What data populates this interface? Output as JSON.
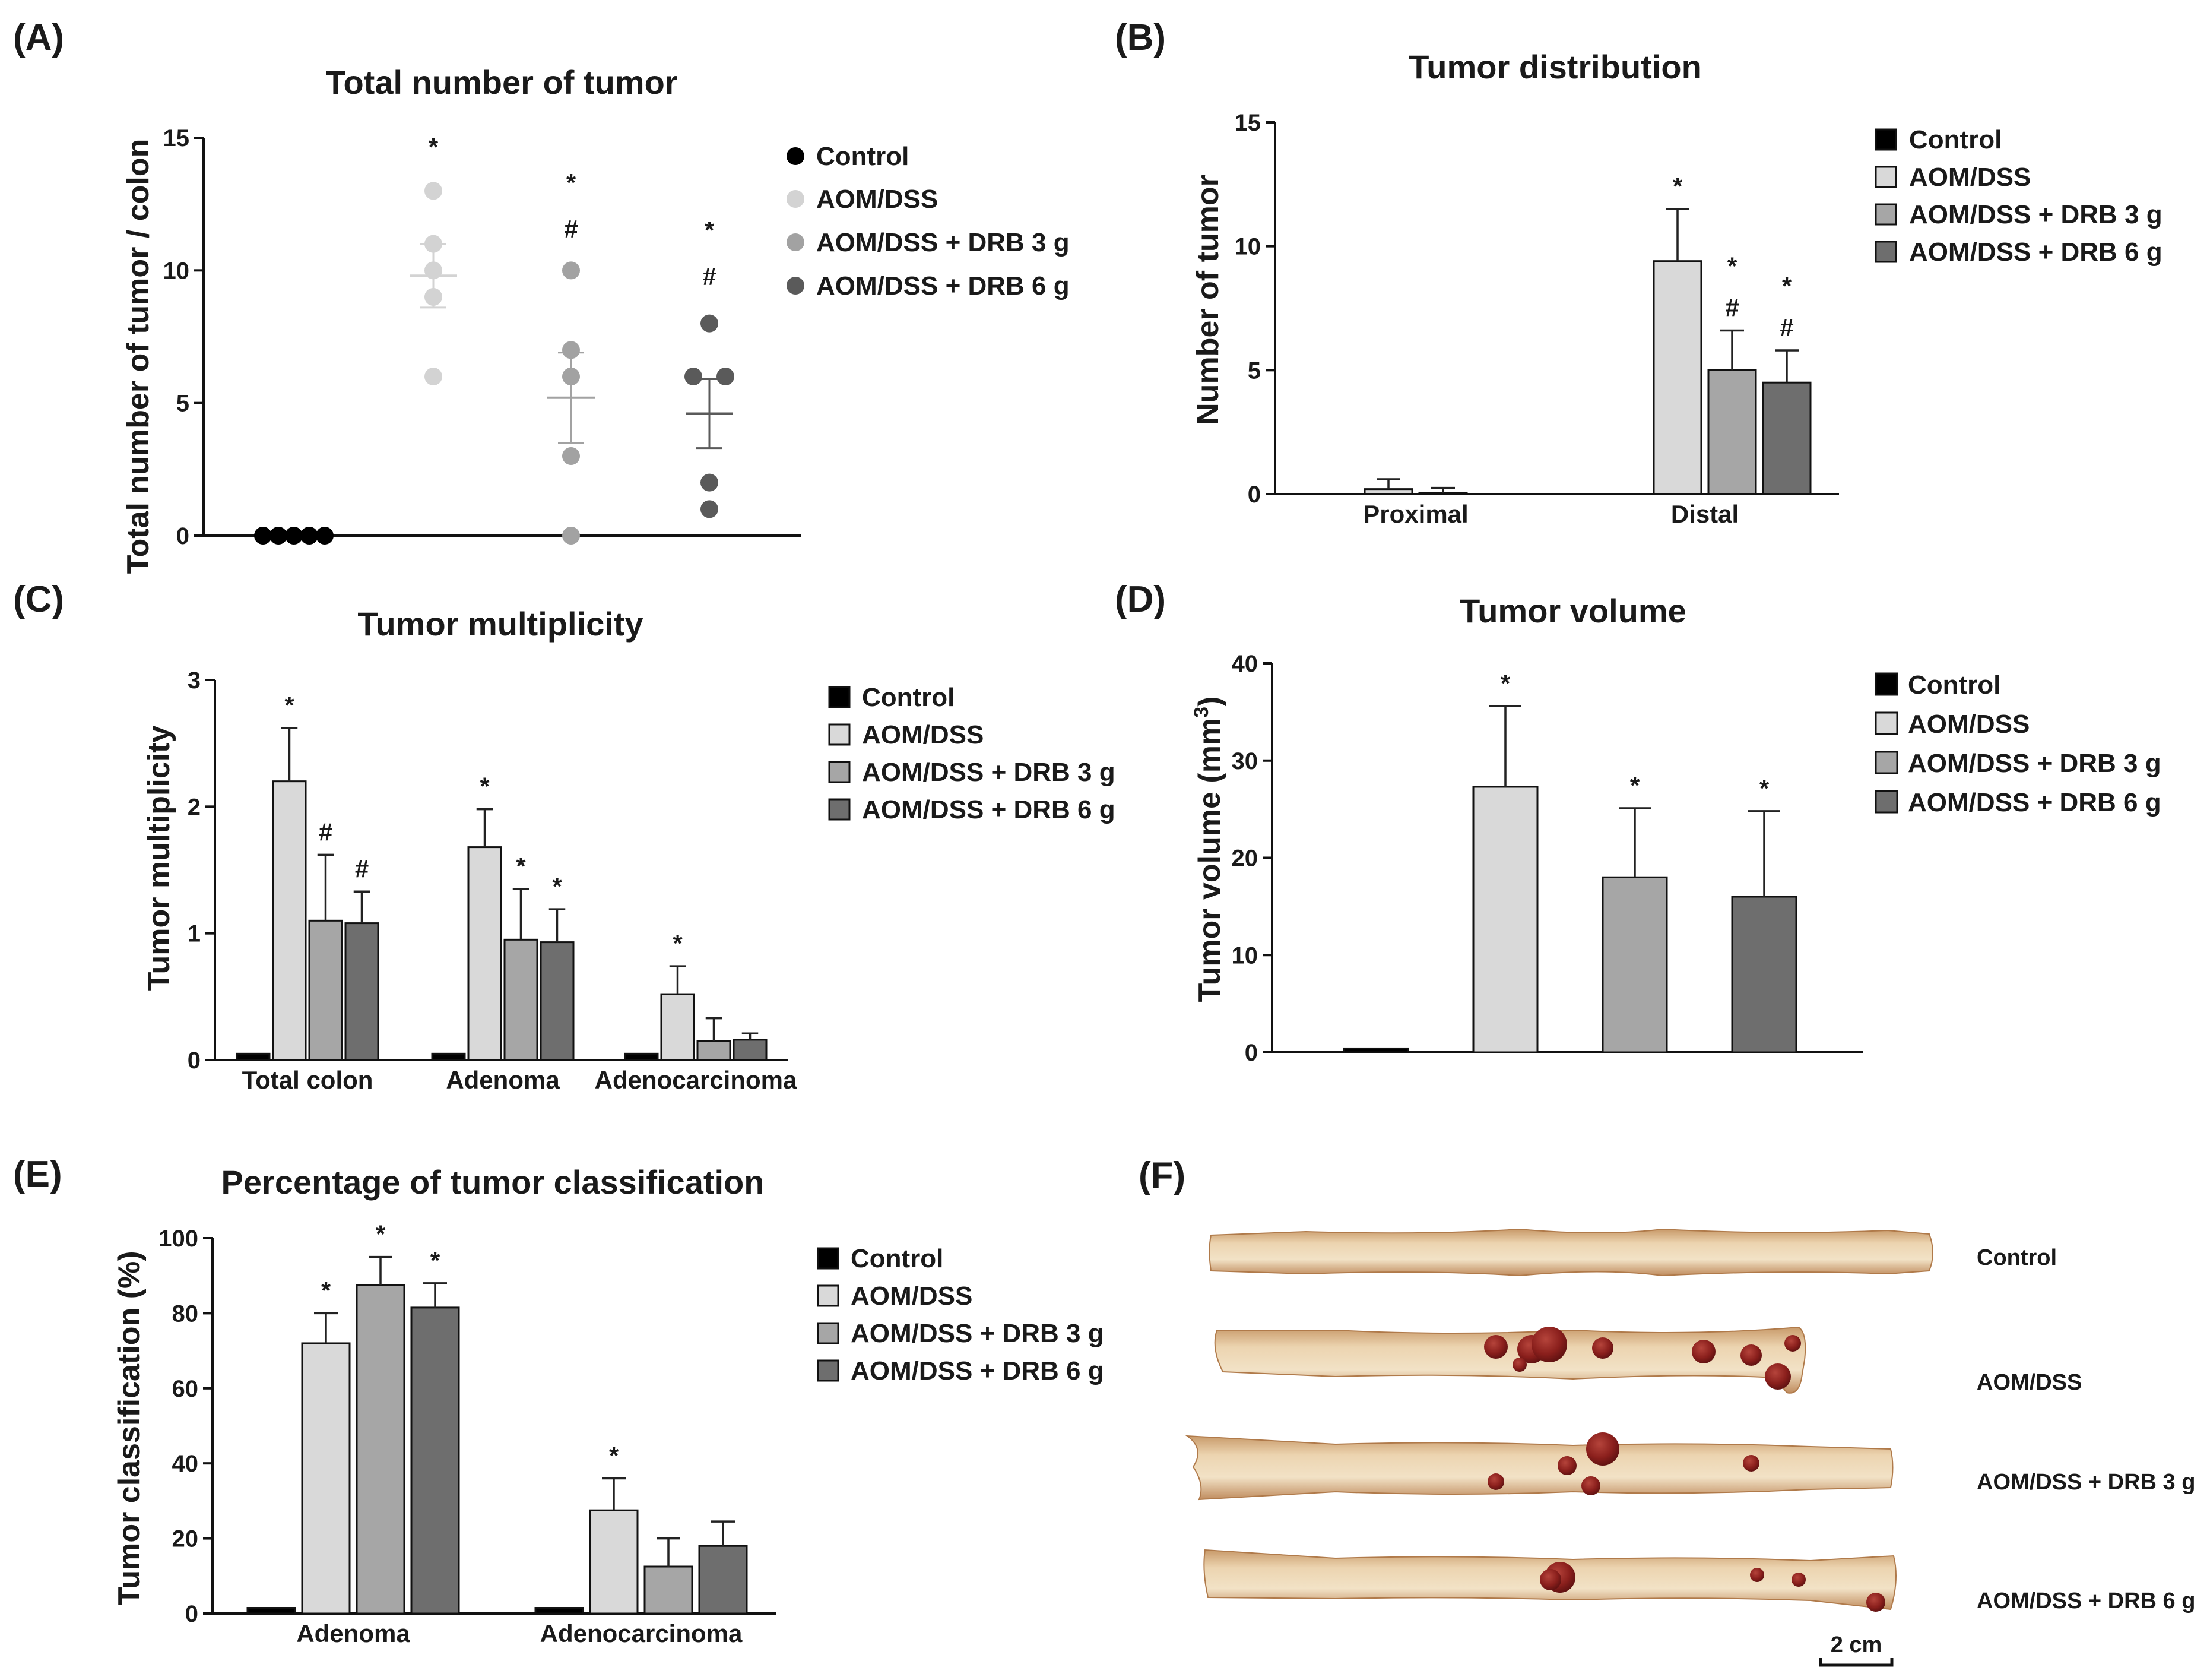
{
  "colors": {
    "control": "#000000",
    "aom": "#d9d9d9",
    "drb3": "#a6a6a6",
    "drb6": "#6e6e6e",
    "dot_aom": "#d3d3d3",
    "dot_drb3": "#a2a2a2",
    "dot_drb6": "#5a5a5a"
  },
  "legend": [
    "Control",
    "AOM/DSS",
    "AOM/DSS + DRB 3 g",
    "AOM/DSS + DRB 6 g"
  ],
  "panel_f": {
    "label": "(F)",
    "sample_labels": [
      "Control",
      "AOM/DSS",
      "AOM/DSS + DRB 3 g",
      "AOM/DSS + DRB 6 g"
    ],
    "scale_bar": "2 cm"
  },
  "chart_data": [
    {
      "id": "A",
      "label": "(A)",
      "type": "scatter",
      "title": "Total number of tumor",
      "xlabel": "",
      "ylabel": "Total number of tumor / colon",
      "ylim": [
        0,
        15
      ],
      "yticks": [
        "0",
        "5",
        "10",
        "15"
      ],
      "series": [
        {
          "name": "Control",
          "points": [
            0,
            0,
            0,
            0,
            0
          ],
          "mean": 0,
          "sem": 0,
          "annotations": []
        },
        {
          "name": "AOM/DSS",
          "points": [
            13,
            11,
            10,
            9,
            6
          ],
          "mean": 9.8,
          "sem": 1.2,
          "annotations": [
            "*"
          ]
        },
        {
          "name": "AOM/DSS + DRB 3 g",
          "points": [
            10,
            7,
            6,
            3,
            0
          ],
          "mean": 5.2,
          "sem": 1.7,
          "annotations": [
            "*",
            "#"
          ]
        },
        {
          "name": "AOM/DSS + DRB 6 g",
          "points": [
            8,
            6,
            6,
            2,
            1
          ],
          "mean": 4.6,
          "sem": 1.3,
          "annotations": [
            "*",
            "#"
          ]
        }
      ]
    },
    {
      "id": "B",
      "label": "(B)",
      "type": "bar",
      "title": "Tumor distribution",
      "xlabel": "",
      "ylabel": "Number of tumor",
      "ylim": [
        0,
        15
      ],
      "yticks": [
        "0",
        "5",
        "10",
        "15"
      ],
      "categories": [
        "Proximal",
        "Distal"
      ],
      "series": [
        {
          "name": "Control",
          "values": [
            0,
            0
          ],
          "errors": [
            0,
            0
          ],
          "annotations": [
            [],
            []
          ]
        },
        {
          "name": "AOM/DSS",
          "values": [
            0.2,
            9.4
          ],
          "errors": [
            0.4,
            2.1
          ],
          "annotations": [
            [],
            [
              "*"
            ]
          ]
        },
        {
          "name": "AOM/DSS + DRB 3 g",
          "values": [
            0.05,
            5.0
          ],
          "errors": [
            0.2,
            1.6
          ],
          "annotations": [
            [],
            [
              "*",
              "#"
            ]
          ]
        },
        {
          "name": "AOM/DSS + DRB 6 g",
          "values": [
            0,
            4.5
          ],
          "errors": [
            0,
            1.3
          ],
          "annotations": [
            [],
            [
              "*",
              "#"
            ]
          ]
        }
      ]
    },
    {
      "id": "C",
      "label": "(C)",
      "type": "bar",
      "title": "Tumor multiplicity",
      "xlabel": "",
      "ylabel": "Tumor multiplicity",
      "ylim": [
        0,
        3
      ],
      "yticks": [
        "0",
        "1",
        "2",
        "3"
      ],
      "categories": [
        "Total colon",
        "Adenoma",
        "Adenocarcinoma"
      ],
      "series": [
        {
          "name": "Control",
          "values": [
            0.05,
            0.05,
            0.05
          ],
          "errors": [
            0,
            0,
            0
          ],
          "annotations": [
            [],
            [],
            []
          ]
        },
        {
          "name": "AOM/DSS",
          "values": [
            2.2,
            1.68,
            0.52
          ],
          "errors": [
            0.42,
            0.3,
            0.22
          ],
          "annotations": [
            [
              "*"
            ],
            [
              "*"
            ],
            [
              "*"
            ]
          ]
        },
        {
          "name": "AOM/DSS + DRB 3 g",
          "values": [
            1.1,
            0.95,
            0.15
          ],
          "errors": [
            0.52,
            0.4,
            0.18
          ],
          "annotations": [
            [
              "#"
            ],
            [
              "*"
            ],
            []
          ]
        },
        {
          "name": "AOM/DSS + DRB 6 g",
          "values": [
            1.08,
            0.93,
            0.16
          ],
          "errors": [
            0.25,
            0.26,
            0.05
          ],
          "annotations": [
            [
              "#"
            ],
            [
              "*"
            ],
            []
          ]
        }
      ]
    },
    {
      "id": "D",
      "label": "(D)",
      "type": "bar",
      "title": "Tumor volume",
      "xlabel": "",
      "ylabel": "Tumor volume (mm",
      "ylabel_sup": "3",
      "ylabel_end": ")",
      "ylim": [
        0,
        40
      ],
      "yticks": [
        "0",
        "10",
        "20",
        "30",
        "40"
      ],
      "categories": [
        "Control",
        "AOM/DSS",
        "AOM/DSS + DRB 3 g",
        "AOM/DSS + DRB 6 g"
      ],
      "values": [
        0.4,
        27.3,
        18.0,
        16.0
      ],
      "errors": [
        0,
        8.3,
        7.1,
        8.8
      ],
      "annotations": [
        [],
        [
          "*"
        ],
        [
          "*"
        ],
        [
          "*"
        ]
      ]
    },
    {
      "id": "E",
      "label": "(E)",
      "type": "bar",
      "title": "Percentage of tumor classification",
      "xlabel": "",
      "ylabel": "Tumor classification (%)",
      "ylim": [
        0,
        100
      ],
      "yticks": [
        "0",
        "20",
        "40",
        "60",
        "80",
        "100"
      ],
      "categories": [
        "Adenoma",
        "Adenocarcinoma"
      ],
      "series": [
        {
          "name": "Control",
          "values": [
            1.5,
            1.5
          ],
          "errors": [
            0,
            0
          ],
          "annotations": [
            [],
            []
          ]
        },
        {
          "name": "AOM/DSS",
          "values": [
            72,
            27.5
          ],
          "errors": [
            8,
            8.5
          ],
          "annotations": [
            [
              "*"
            ],
            [
              "*"
            ]
          ]
        },
        {
          "name": "AOM/DSS + DRB 3 g",
          "values": [
            87.5,
            12.5
          ],
          "errors": [
            7.5,
            7.5
          ],
          "annotations": [
            [
              "*"
            ],
            []
          ]
        },
        {
          "name": "AOM/DSS + DRB 6 g",
          "values": [
            81.5,
            18
          ],
          "errors": [
            6.5,
            6.5
          ],
          "annotations": [
            [
              "*"
            ],
            []
          ]
        }
      ]
    }
  ]
}
